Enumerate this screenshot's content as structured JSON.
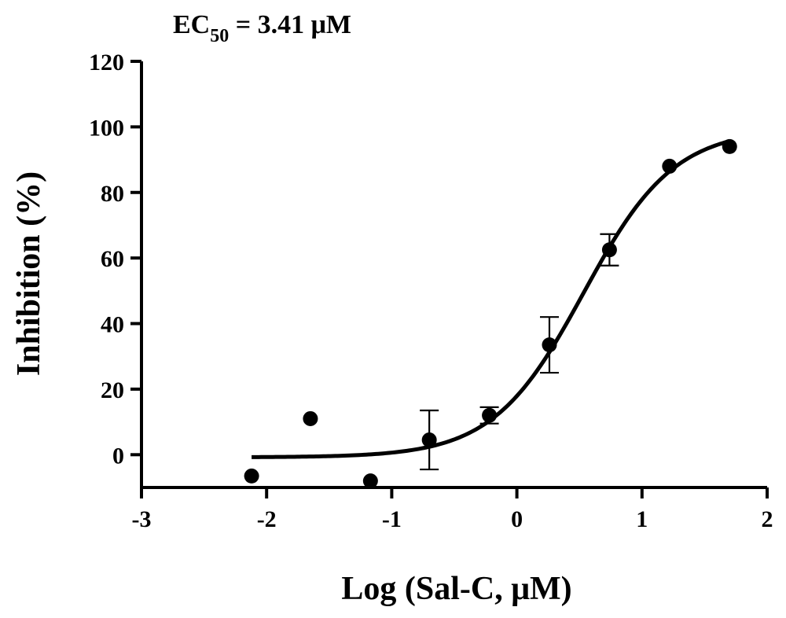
{
  "chart_data": {
    "type": "scatter",
    "title": {
      "prefix": "EC",
      "subscript": "50",
      "suffix": " =  3.41 μM"
    },
    "xlabel": "Log (Sal-C, μM)",
    "ylabel": "Inhibition (%)",
    "xlim": [
      -3,
      2
    ],
    "ylim": [
      -10,
      120
    ],
    "xticks": [
      -3,
      -2,
      -1,
      0,
      1,
      2
    ],
    "yticks": [
      0,
      20,
      40,
      60,
      80,
      100,
      120
    ],
    "grid": false,
    "points": [
      {
        "x": -2.12,
        "y": -6.5
      },
      {
        "x": -1.65,
        "y": 11.0
      },
      {
        "x": -1.17,
        "y": -8.0
      },
      {
        "x": -0.7,
        "y": 4.5,
        "err": 9.0
      },
      {
        "x": -0.22,
        "y": 12.0,
        "err": 2.5
      },
      {
        "x": 0.26,
        "y": 33.5,
        "err": 8.5
      },
      {
        "x": 0.74,
        "y": 62.5,
        "err": 4.8
      },
      {
        "x": 1.22,
        "y": 88.0
      },
      {
        "x": 1.7,
        "y": 94.0
      }
    ],
    "fit": {
      "model": "four-parameter logistic",
      "bottom": -0.8,
      "top": 99.5,
      "logEC50": 0.533,
      "hillSlope": 1.2,
      "xrange": [
        -2.12,
        1.7
      ]
    }
  }
}
